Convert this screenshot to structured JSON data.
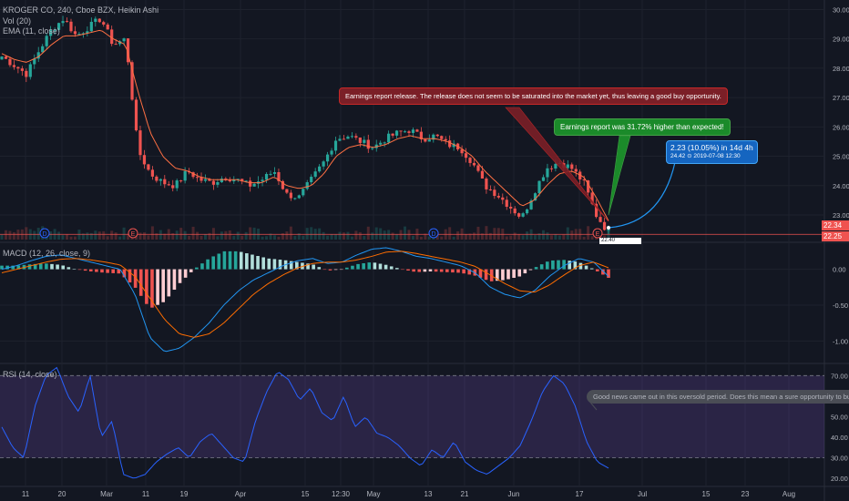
{
  "legend": {
    "symbol": "KROGER CO, 240, Cboe BZX, Heikin Ashi",
    "vol": "Vol (20)",
    "ema": "EMA (11, close)",
    "macd": "MACD (12, 26, close, 9)",
    "rsi": "RSI (14, close)"
  },
  "callouts": {
    "earnings_release": "Earnings report release. The release does not seem to be saturated into the market yet, thus leaving a good buy opportunity.",
    "earnings_higher": "Earnings report was 31.72% higher than expected!",
    "projection_line1": "2.23 (10.05%) in 14d 4h",
    "projection_line2": "24.42  ⊙ 2019-07-08  12:30",
    "rsi_note": "Good news came out in this oversold period. Does this mean a sure opportunity to buy?",
    "price_box": "22.40"
  },
  "price_tags": {
    "current_a": "22.34",
    "current_b": "22.25"
  },
  "event_markers": [
    "D",
    "E",
    "D",
    "E"
  ],
  "colors": {
    "up": "#26a69a",
    "down": "#ef5350",
    "ema": "#ff7043",
    "macd_line": "#2196f3",
    "signal_line": "#ff6d00",
    "rsi_line": "#2962ff",
    "rsi_band": "#7e57c2",
    "callout_red": "#7b1f27",
    "callout_green": "#1b8a2a",
    "callout_blue": "#1565c0"
  },
  "chart_data": [
    {
      "type": "candlestick",
      "title": "KROGER CO, 240, Cboe BZX, Heikin Ashi",
      "x_ticks": [
        "11",
        "20",
        "Mar",
        "11",
        "19",
        "Apr",
        "15",
        "12:30",
        "May",
        "13",
        "21",
        "Jun",
        "17",
        "Jul",
        "15",
        "23",
        "Aug"
      ],
      "y_ticks": [
        30.0,
        29.0,
        28.0,
        27.0,
        26.0,
        25.0,
        24.0,
        23.0
      ],
      "ylim": [
        22.1,
        30.2
      ],
      "close_path": [
        28.4,
        28.1,
        27.8,
        28.6,
        29.3,
        29.7,
        29.1,
        29.4,
        29.7,
        28.8,
        29.0,
        25.2,
        24.4,
        24.1,
        24.0,
        24.5,
        24.2,
        24.1,
        24.3,
        24.2,
        24.0,
        24.2,
        24.5,
        23.7,
        23.6,
        24.2,
        24.8,
        25.6,
        25.7,
        25.5,
        25.3,
        25.6,
        25.8,
        25.9,
        25.6,
        25.7,
        25.4,
        25.3,
        24.8,
        24.0,
        23.7,
        23.3,
        22.9,
        23.8,
        24.6,
        24.8,
        24.6,
        24.1,
        23.0,
        22.4
      ],
      "ema_path": [
        28.5,
        28.3,
        28.2,
        28.4,
        28.8,
        29.1,
        29.1,
        29.2,
        29.3,
        29.0,
        28.8,
        27.2,
        25.8,
        25.0,
        24.6,
        24.5,
        24.3,
        24.2,
        24.2,
        24.2,
        24.1,
        24.1,
        24.3,
        24.0,
        23.9,
        24.0,
        24.4,
        25.0,
        25.3,
        25.4,
        25.3,
        25.4,
        25.6,
        25.7,
        25.6,
        25.6,
        25.5,
        25.3,
        25.0,
        24.5,
        24.1,
        23.7,
        23.3,
        23.5,
        24.0,
        24.4,
        24.5,
        24.3,
        23.6,
        22.8
      ],
      "last_price": 22.34,
      "projection": {
        "change": 2.23,
        "percent": 10.05,
        "target": 24.42,
        "date": "2019-07-08"
      }
    },
    {
      "type": "line",
      "title": "MACD (12, 26, close, 9)",
      "y_ticks": [
        0.0,
        -0.5,
        -1.0
      ],
      "ylim": [
        -1.3,
        0.35
      ],
      "series": [
        {
          "values": [
            0.0,
            0.05,
            0.12,
            0.18,
            0.2,
            0.15,
            0.1,
            0.05,
            0.0,
            -0.35,
            -0.95,
            -1.15,
            -1.1,
            -0.95,
            -0.75,
            -0.5,
            -0.3,
            -0.15,
            -0.05,
            0.05,
            0.12,
            0.15,
            0.08,
            0.1,
            0.2,
            0.28,
            0.3,
            0.25,
            0.18,
            0.15,
            0.1,
            0.05,
            -0.05,
            -0.25,
            -0.35,
            -0.4,
            -0.3,
            -0.1,
            0.05,
            0.15,
            0.1,
            -0.1
          ]
        },
        {
          "values": [
            -0.05,
            0.0,
            0.05,
            0.1,
            0.14,
            0.15,
            0.13,
            0.1,
            0.06,
            -0.1,
            -0.4,
            -0.7,
            -0.9,
            -0.95,
            -0.9,
            -0.75,
            -0.55,
            -0.35,
            -0.2,
            -0.08,
            0.02,
            0.08,
            0.1,
            0.1,
            0.13,
            0.18,
            0.24,
            0.25,
            0.22,
            0.18,
            0.14,
            0.1,
            0.04,
            -0.08,
            -0.2,
            -0.3,
            -0.32,
            -0.22,
            -0.08,
            0.05,
            0.1,
            0.02
          ]
        }
      ]
    },
    {
      "type": "line",
      "title": "RSI (14, close)",
      "y_ticks": [
        70.0,
        60.0,
        50.0,
        40.0,
        30.0,
        20.0
      ],
      "bands": [
        70,
        30
      ],
      "ylim": [
        17,
        75
      ],
      "values": [
        45,
        35,
        30,
        55,
        70,
        74,
        60,
        52,
        70,
        40,
        48,
        22,
        20,
        22,
        28,
        32,
        35,
        30,
        38,
        42,
        36,
        30,
        28,
        48,
        62,
        72,
        68,
        58,
        64,
        52,
        48,
        60,
        45,
        50,
        42,
        40,
        36,
        30,
        26,
        34,
        30,
        38,
        28,
        24,
        22,
        26,
        30,
        36,
        48,
        62,
        70,
        66,
        55,
        38,
        28,
        25
      ]
    }
  ]
}
